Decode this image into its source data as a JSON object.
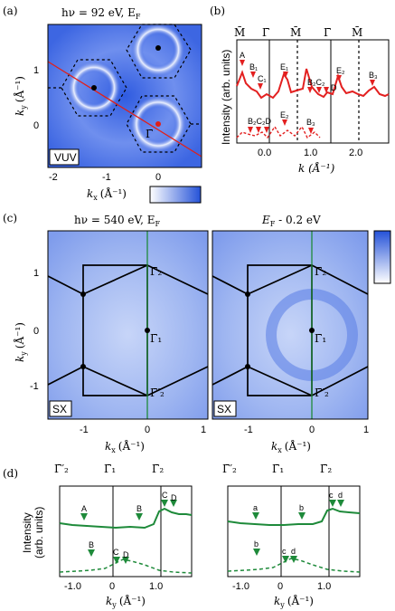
{
  "panel_a": {
    "label": "(a)",
    "title": "hν = 92 eV, E",
    "title_sub": "F",
    "ylabel": "k",
    "ylabel_sub": "y",
    "ylabel_unit": "(Å⁻¹)",
    "xlabel": "k",
    "xlabel_sub": "x",
    "xlabel_unit": "(Å⁻¹)",
    "xticks": [
      "-2",
      "-1",
      "0"
    ],
    "yticks": [
      "1",
      "0"
    ],
    "gamma_label": "Γ̄",
    "mode_label": "VUV",
    "colors": {
      "map_light": "#eef2ff",
      "map_mid": "#7b97ee",
      "map_dark": "#2452d8",
      "cut_line": "#e0201a"
    }
  },
  "panel_b": {
    "label": "(b)",
    "ylabel": "Intensity (arb. units)",
    "xlabel": "k (Å⁻¹)",
    "top_labels": [
      "M̄",
      "Γ̄",
      "M̄",
      "Γ̄",
      "M̄"
    ],
    "xticks": [
      "0.0",
      "1.0",
      "2.0"
    ],
    "markers_upper": [
      "A",
      "B₁",
      "C₁",
      "E₁",
      "B₂C₂",
      "D",
      "E₂",
      "B₃"
    ],
    "markers_lower": [
      "B₂C₂D",
      "E₂",
      "B₃"
    ],
    "curve_color": "#e32020"
  },
  "panel_c": {
    "label": "(c)",
    "left_title": "hν = 540 eV, E",
    "left_title_sub": "F",
    "right_title": "E",
    "right_title_sub": "F",
    "right_title_tail": " - 0.2 eV",
    "ylabel": "k",
    "ylabel_sub": "y",
    "ylabel_unit": "(Å⁻¹)",
    "xlabel": "k",
    "xlabel_sub": "x",
    "xlabel_unit": "(Å⁻¹)",
    "xticks": [
      "-1",
      "0",
      "1"
    ],
    "yticks": [
      "1",
      "0",
      "-1"
    ],
    "gamma_labels": [
      "Γ̄₂",
      "Γ̄₁",
      "Γ̄′₂"
    ],
    "mode_label": "SX",
    "colors": {
      "map_light": "#e9efff",
      "map_mid": "#8fa9ef",
      "map_dark": "#3a62dd",
      "cut_line": "#1e8a3a"
    }
  },
  "panel_d": {
    "label": "(d)",
    "ylabel": "Intensity",
    "ylabel2": "(arb. units)",
    "xlabel": "k",
    "xlabel_sub": "y",
    "xlabel_unit": "(Å⁻¹)",
    "top_labels": [
      "Γ̄′₂",
      "Γ̄₁",
      "Γ̄₂"
    ],
    "xticks": [
      "-1.0",
      "0",
      "1.0"
    ],
    "left_upper": [
      "A",
      "B",
      "C",
      "D"
    ],
    "left_lower": [
      "B",
      "C",
      "D"
    ],
    "right_upper": [
      "a",
      "b",
      "c",
      "d"
    ],
    "right_lower": [
      "b",
      "c",
      "d"
    ],
    "curve_color": "#1e8a3a"
  }
}
